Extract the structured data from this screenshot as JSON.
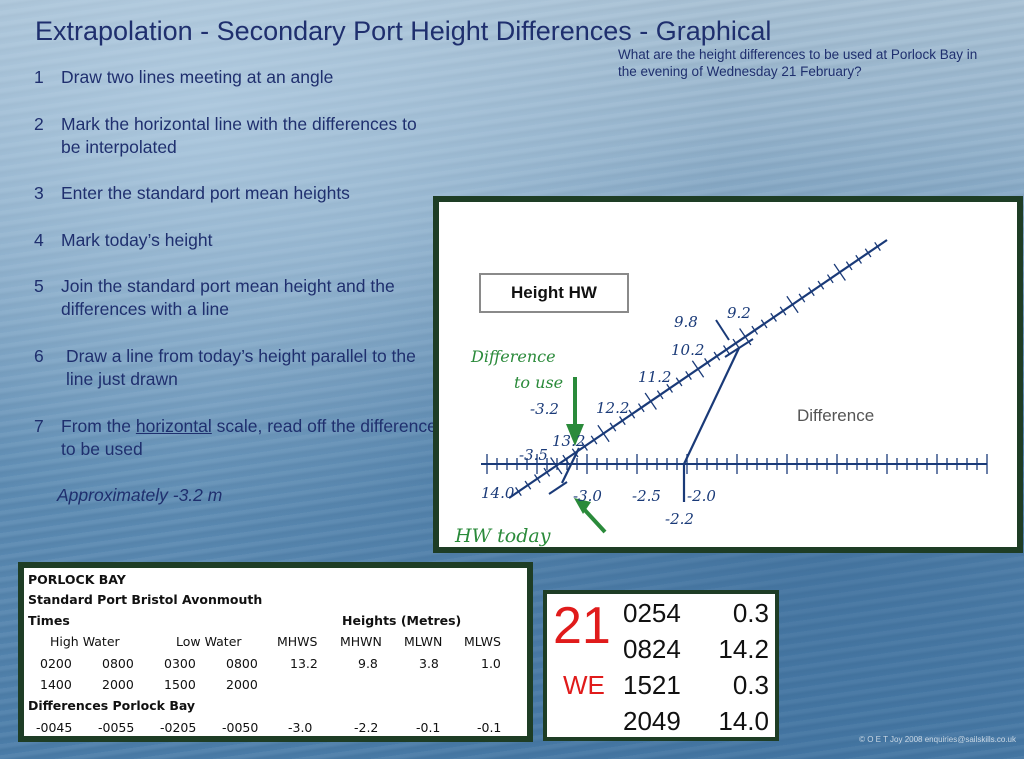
{
  "title": "Extrapolation - Secondary Port Height Differences - Graphical",
  "question": "What are the height differences to be used at Porlock Bay in the evening of Wednesday 21 February?",
  "steps": [
    {
      "num": "1",
      "text": "Draw two lines meeting at an angle"
    },
    {
      "num": "2",
      "text": "Mark the horizontal line with the differences to be interpolated"
    },
    {
      "num": "3",
      "text": "Enter the standard port mean heights"
    },
    {
      "num": "4",
      "text": "Mark today’s height"
    },
    {
      "num": "5",
      "text": "Join the standard port mean height and the differences with a line"
    },
    {
      "num": "6",
      "text": "Draw a line from today’s height parallel to the line just drawn"
    },
    {
      "num": "7",
      "text_before": "From the ",
      "text_underlined": "horizontal",
      "text_after": " scale, read off the difference to be used"
    }
  ],
  "approx": "Approximately -3.2 m",
  "diagram": {
    "box_label": "Height HW",
    "difference_label": "Difference",
    "difference_to_use_1": "Difference",
    "difference_to_use_2": "to use",
    "hw_today": "HW today",
    "slanted_labels": [
      "14.0",
      "13.2",
      "12.2",
      "11.2",
      "10.2",
      "9.8",
      "9.2"
    ],
    "horizontal_labels": [
      "-3.5",
      "-3.0",
      "-2.5",
      "-2.0",
      "-2.2",
      "-3.2"
    ],
    "colors": {
      "line": "#1a3a78",
      "annotation": "#2a8a3a",
      "label": "#1a3a78"
    }
  },
  "porlock_table": {
    "title": "PORLOCK BAY",
    "standard_port": "Standard Port Bristol Avonmouth",
    "times_label": "Times",
    "heights_label": "Heights (Metres)",
    "col_high_water": "High Water",
    "col_low_water": "Low Water",
    "col_mhws": "MHWS",
    "col_mhwn": "MHWN",
    "col_mlwn": "MLWN",
    "col_mlws": "MLWS",
    "row1": [
      "0200",
      "0800",
      "0300",
      "0800",
      "13.2",
      "9.8",
      "3.8",
      "1.0"
    ],
    "row2": [
      "1400",
      "2000",
      "1500",
      "2000"
    ],
    "diff_label": "Differences Porlock Bay",
    "diff_row": [
      "-0045",
      "-0055",
      "-0205",
      "-0050",
      "-3.0",
      "-2.2",
      "-0.1",
      "-0.1"
    ]
  },
  "tide": {
    "day": "21",
    "dow": "WE",
    "entries": [
      {
        "time": "0254",
        "height": "0.3"
      },
      {
        "time": "0824",
        "height": "14.2"
      },
      {
        "time": "1521",
        "height": "0.3"
      },
      {
        "time": "2049",
        "height": "14.0"
      }
    ]
  },
  "copyright": "© O E T Joy 2008 enquiries@sailskills.co.uk"
}
